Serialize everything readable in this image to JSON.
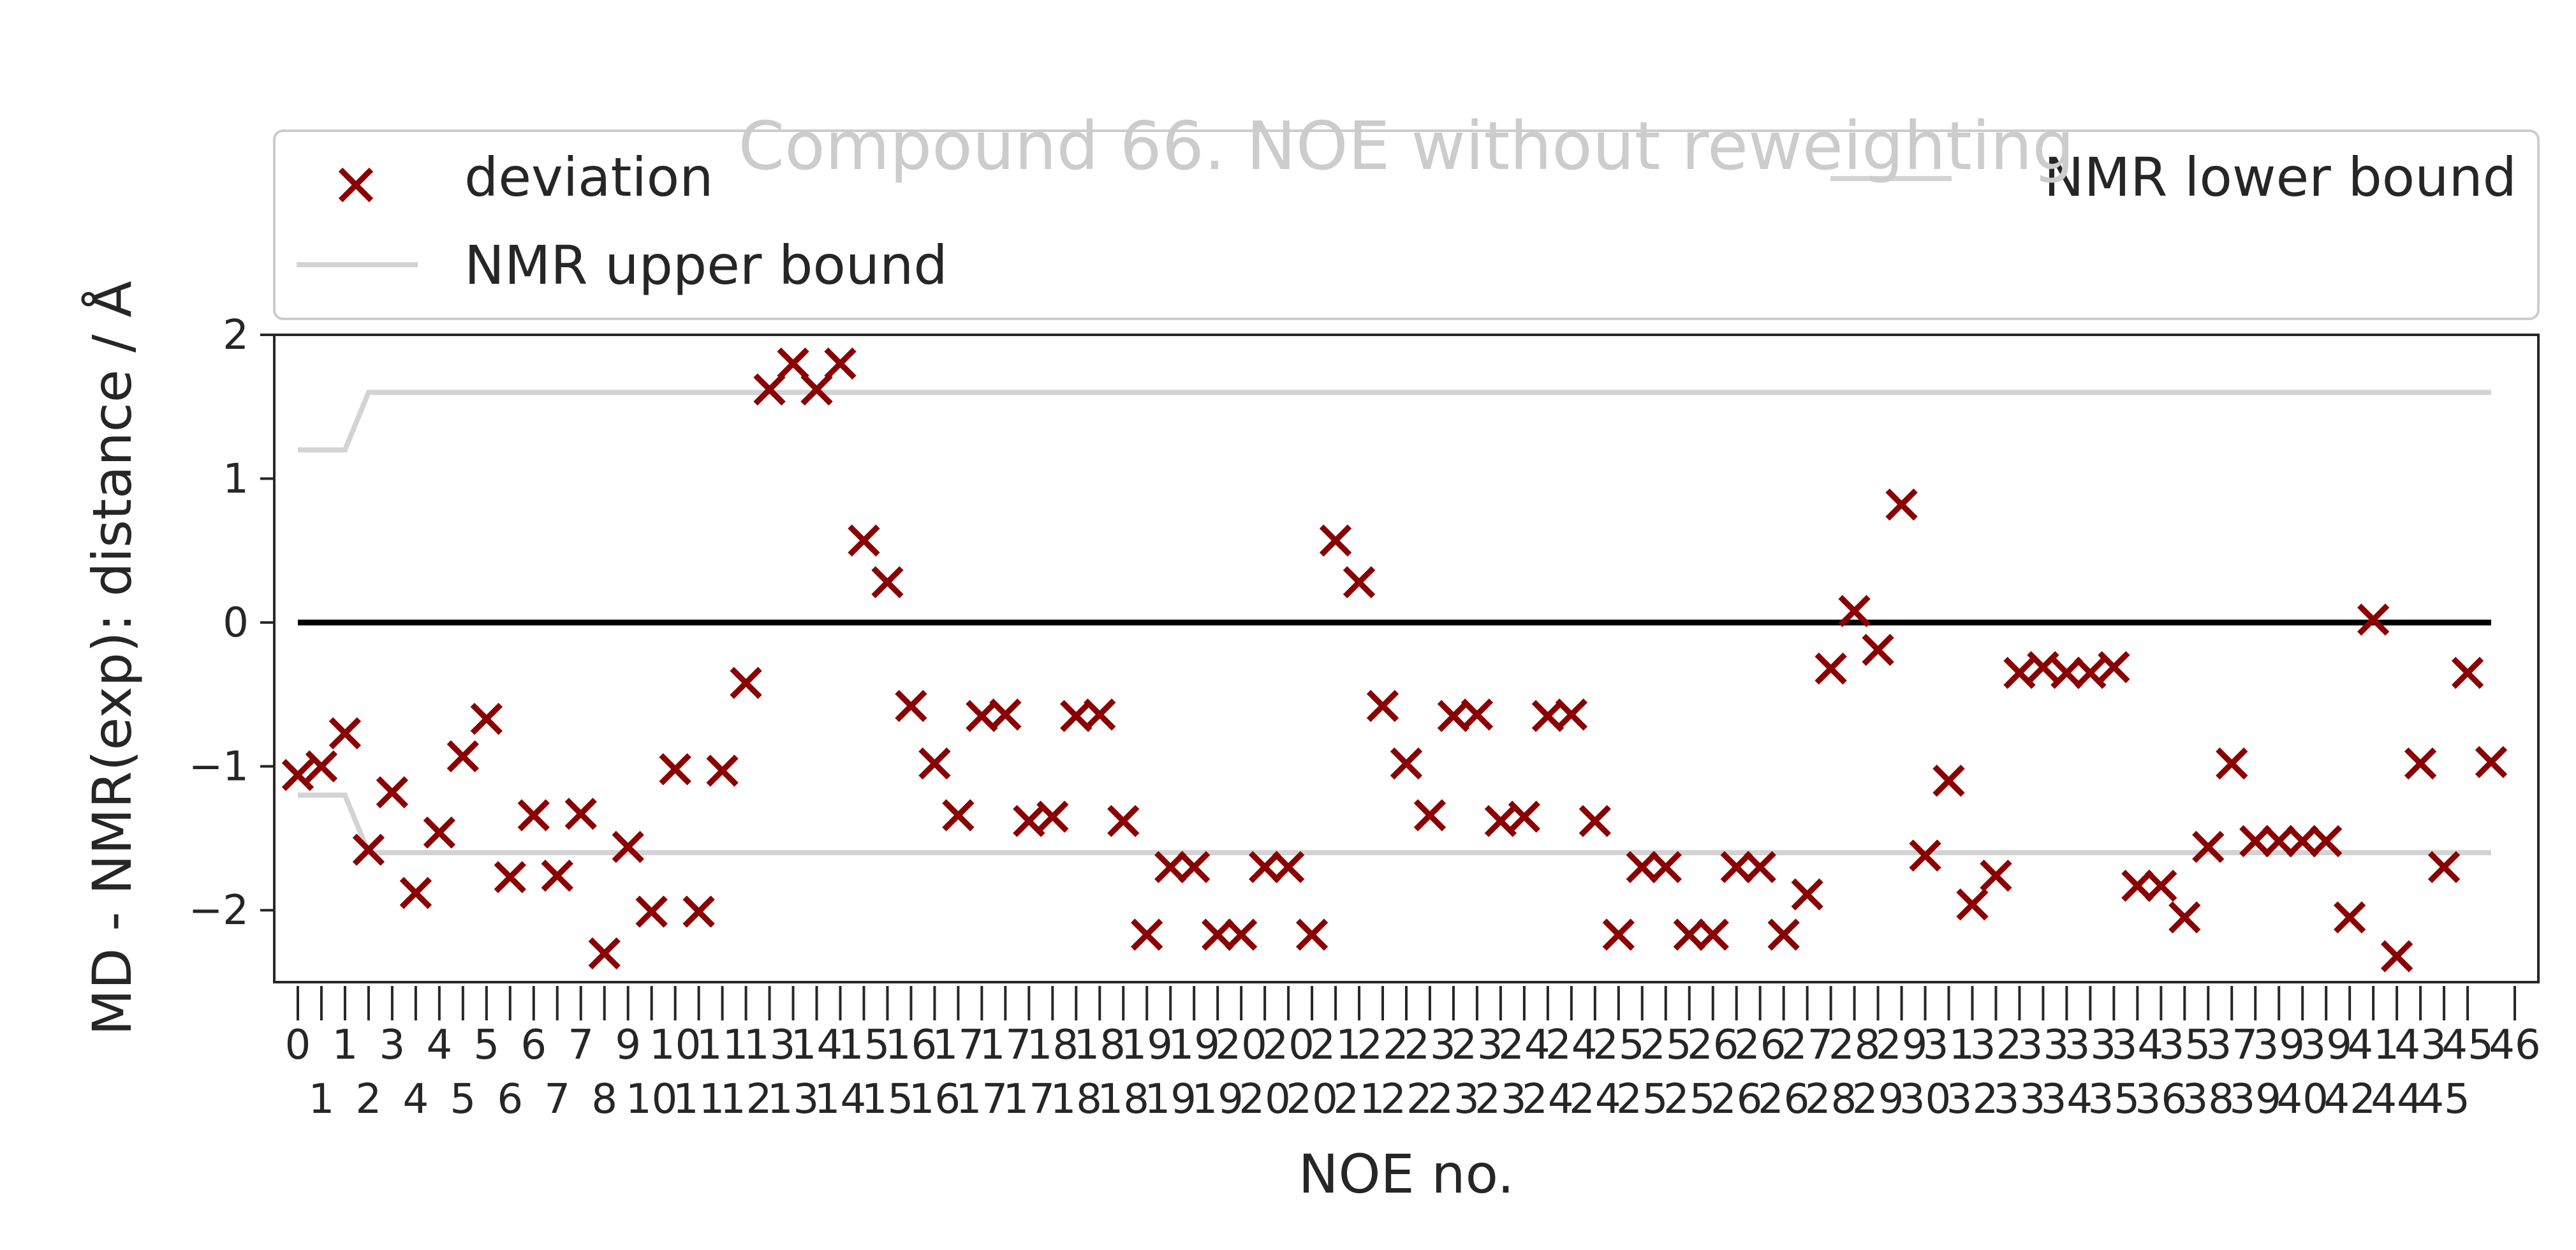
{
  "chart_data": {
    "type": "scatter",
    "title": "Compound 66. NOE without reweighting",
    "xlabel": "NOE no.",
    "ylabel": "MD - NMR(exp): distance / Å",
    "ylim": [
      -2.5,
      2.0
    ],
    "yticks": [
      -2,
      -1,
      0,
      1,
      2
    ],
    "ytick_labels": [
      "−2",
      "−1",
      "0",
      "1",
      "2"
    ],
    "xlim": [
      -1,
      95
    ],
    "xticks_top": [
      "0",
      "1",
      "3",
      "4",
      "5",
      "6",
      "7",
      "9",
      "10",
      "11",
      "13",
      "14",
      "15",
      "16",
      "17",
      "17",
      "18",
      "18",
      "19",
      "19",
      "20",
      "20",
      "21",
      "22",
      "23",
      "23",
      "24",
      "24",
      "25",
      "25",
      "26",
      "26",
      "27",
      "28",
      "29",
      "31",
      "32",
      "33",
      "33",
      "34",
      "35",
      "37",
      "39",
      "39",
      "41",
      "43",
      "45",
      "46"
    ],
    "xticks_bottom": [
      "1",
      "2",
      "4",
      "5",
      "6",
      "7",
      "8",
      "10",
      "11",
      "12",
      "13",
      "14",
      "15",
      "16",
      "17",
      "17",
      "18",
      "18",
      "19",
      "19",
      "20",
      "20",
      "21",
      "22",
      "23",
      "23",
      "24",
      "24",
      "25",
      "25",
      "26",
      "26",
      "28",
      "29",
      "30",
      "32",
      "33",
      "34",
      "35",
      "36",
      "38",
      "39",
      "40",
      "42",
      "44",
      "45"
    ],
    "grid": false,
    "legend": {
      "placement": "top, above plot",
      "entries": [
        {
          "label": "deviation",
          "marker": "x",
          "color": "#8b0000"
        },
        {
          "label": "NMR lower bound",
          "marker": "line",
          "color": "#d3d3d3"
        },
        {
          "label": "NMR upper bound",
          "marker": "line",
          "color": "#d3d3d3"
        }
      ]
    },
    "series": [
      {
        "name": "deviation",
        "marker": "x",
        "color": "#8b0000",
        "x": [
          0,
          1,
          2,
          3,
          4,
          5,
          6,
          7,
          8,
          9,
          10,
          11,
          12,
          13,
          14,
          15,
          16,
          17,
          18,
          19,
          20,
          21,
          22,
          23,
          24,
          25,
          26,
          27,
          28,
          29,
          30,
          31,
          32,
          33,
          34,
          35,
          36,
          37,
          38,
          39,
          40,
          41,
          42,
          43,
          44,
          45,
          46,
          47,
          48,
          49,
          50,
          51,
          52,
          53,
          54,
          55,
          56,
          57,
          58,
          59,
          60,
          61,
          62,
          63,
          64,
          65,
          66,
          67,
          68,
          69,
          70,
          71,
          72,
          73,
          74,
          75,
          76,
          77,
          78,
          79,
          80,
          81,
          82,
          83,
          84,
          85,
          86,
          87,
          88,
          89,
          90,
          91,
          92,
          93
        ],
        "y": [
          -1.06,
          -1.0,
          -0.77,
          -1.58,
          -1.18,
          -1.88,
          -1.46,
          -0.93,
          -0.67,
          -1.77,
          -1.34,
          -1.76,
          -1.33,
          -2.3,
          -1.56,
          -2.01,
          -1.02,
          -2.01,
          -1.03,
          -0.42,
          1.62,
          1.8,
          1.62,
          1.8,
          0.57,
          0.28,
          -0.58,
          -0.98,
          -1.34,
          -0.65,
          -0.64,
          -1.38,
          -1.35,
          -0.65,
          -0.64,
          -1.38,
          -2.17,
          -1.7,
          -1.7,
          -2.17,
          -2.17,
          -1.7,
          -1.7,
          -2.17,
          0.57,
          0.28,
          -0.58,
          -0.98,
          -1.34,
          -0.65,
          -0.64,
          -1.38,
          -1.35,
          -0.65,
          -0.64,
          -1.38,
          -2.17,
          -1.7,
          -1.7,
          -2.17,
          -2.17,
          -1.7,
          -1.7,
          -2.17,
          -1.89,
          -0.32,
          0.08,
          -0.19,
          0.82,
          -1.62,
          -1.1,
          -1.96,
          -1.76,
          -0.35,
          -0.31,
          -0.35,
          -0.35,
          -0.31,
          -1.83,
          -1.83,
          -2.05,
          -1.56,
          -0.98,
          -1.52,
          -1.52,
          -1.52,
          -1.52,
          -2.05,
          0.02,
          -2.32,
          -0.98,
          -1.7,
          -0.35,
          -0.97
        ]
      },
      {
        "name": "NMR upper bound",
        "color": "#d3d3d3",
        "x": [
          0,
          2,
          3,
          93
        ],
        "y": [
          1.2,
          1.2,
          1.6,
          1.6
        ]
      },
      {
        "name": "NMR lower bound",
        "color": "#d3d3d3",
        "x": [
          0,
          2,
          3,
          93
        ],
        "y": [
          -1.2,
          -1.2,
          -1.6,
          -1.6
        ]
      },
      {
        "name": "",
        "color": "#000000",
        "x": [
          0,
          93
        ],
        "y": [
          0,
          0
        ]
      }
    ]
  }
}
